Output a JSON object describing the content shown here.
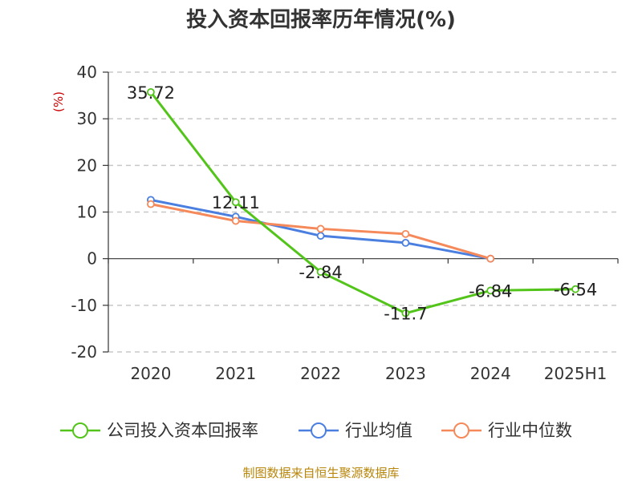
{
  "chart_data": {
    "type": "line",
    "title": "投入资本回报率历年情况(%)",
    "ylabel": "(%)",
    "xlabel": "",
    "categories": [
      "2020",
      "2021",
      "2022",
      "2023",
      "2024",
      "2025H1"
    ],
    "yticks": [
      40,
      30,
      20,
      10,
      0,
      -10,
      -20
    ],
    "ylim": [
      -20,
      40
    ],
    "grid": true,
    "legend_position": "bottom",
    "series": [
      {
        "name": "公司投入资本回报率",
        "color": "#52c41a",
        "values": [
          35.72,
          12.11,
          -2.84,
          -11.7,
          -6.84,
          -6.54
        ],
        "labels": [
          "35.72",
          "12.11",
          "-2.84",
          "-11.7",
          "-6.84",
          "-6.54"
        ]
      },
      {
        "name": "行业均值",
        "color": "#4a7fe0",
        "values": [
          12.6,
          9.0,
          4.9,
          3.4,
          0,
          null
        ]
      },
      {
        "name": "行业中位数",
        "color": "#f5895a",
        "values": [
          11.7,
          8.1,
          6.4,
          5.3,
          0,
          null
        ]
      }
    ],
    "source": "制图数据来自恒生聚源数据库"
  }
}
